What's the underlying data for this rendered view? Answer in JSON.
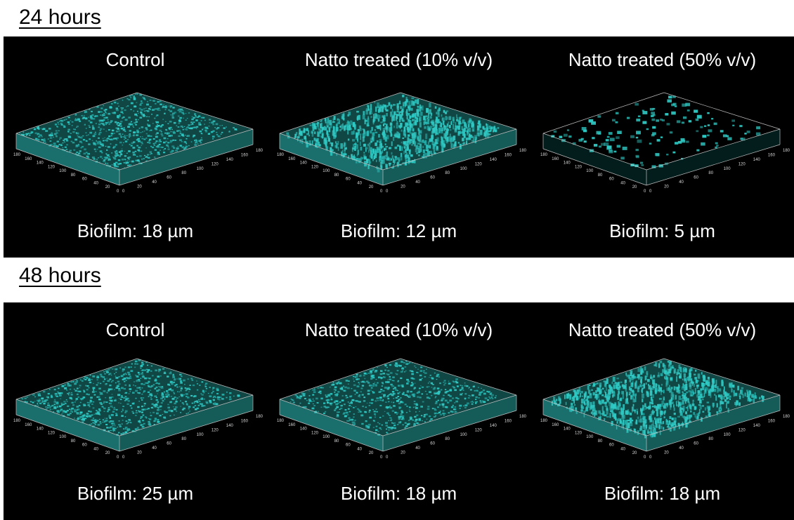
{
  "sections": [
    {
      "title": "24 hours",
      "panels": [
        {
          "condition": "Control",
          "biofilm": "Biofilm: 18 µm",
          "density": 1.0,
          "pattern": "dense"
        },
        {
          "condition": "Natto treated (10% v/v)",
          "biofilm": "Biofilm: 12 µm",
          "density": 0.85,
          "pattern": "streaky"
        },
        {
          "condition": "Natto treated (50% v/v)",
          "biofilm": "Biofilm: 5 µm",
          "density": 0.3,
          "pattern": "sparse"
        }
      ]
    },
    {
      "title": "48 hours",
      "panels": [
        {
          "condition": "Control",
          "biofilm": "Biofilm: 25 µm",
          "density": 0.9,
          "pattern": "dense"
        },
        {
          "condition": "Natto treated (10% v/v)",
          "biofilm": "Biofilm: 18 µm",
          "density": 0.8,
          "pattern": "patchy"
        },
        {
          "condition": "Natto treated (50% v/v)",
          "biofilm": "Biofilm: 18 µm",
          "density": 0.55,
          "pattern": "streaky"
        }
      ]
    }
  ],
  "axis_ticks": [
    "0",
    "20",
    "40",
    "60",
    "80",
    "100",
    "120",
    "140",
    "160",
    "180"
  ],
  "colors": {
    "biofilm": "#2fc9c4",
    "background": "#000000",
    "frame": "#bfbfbf"
  }
}
